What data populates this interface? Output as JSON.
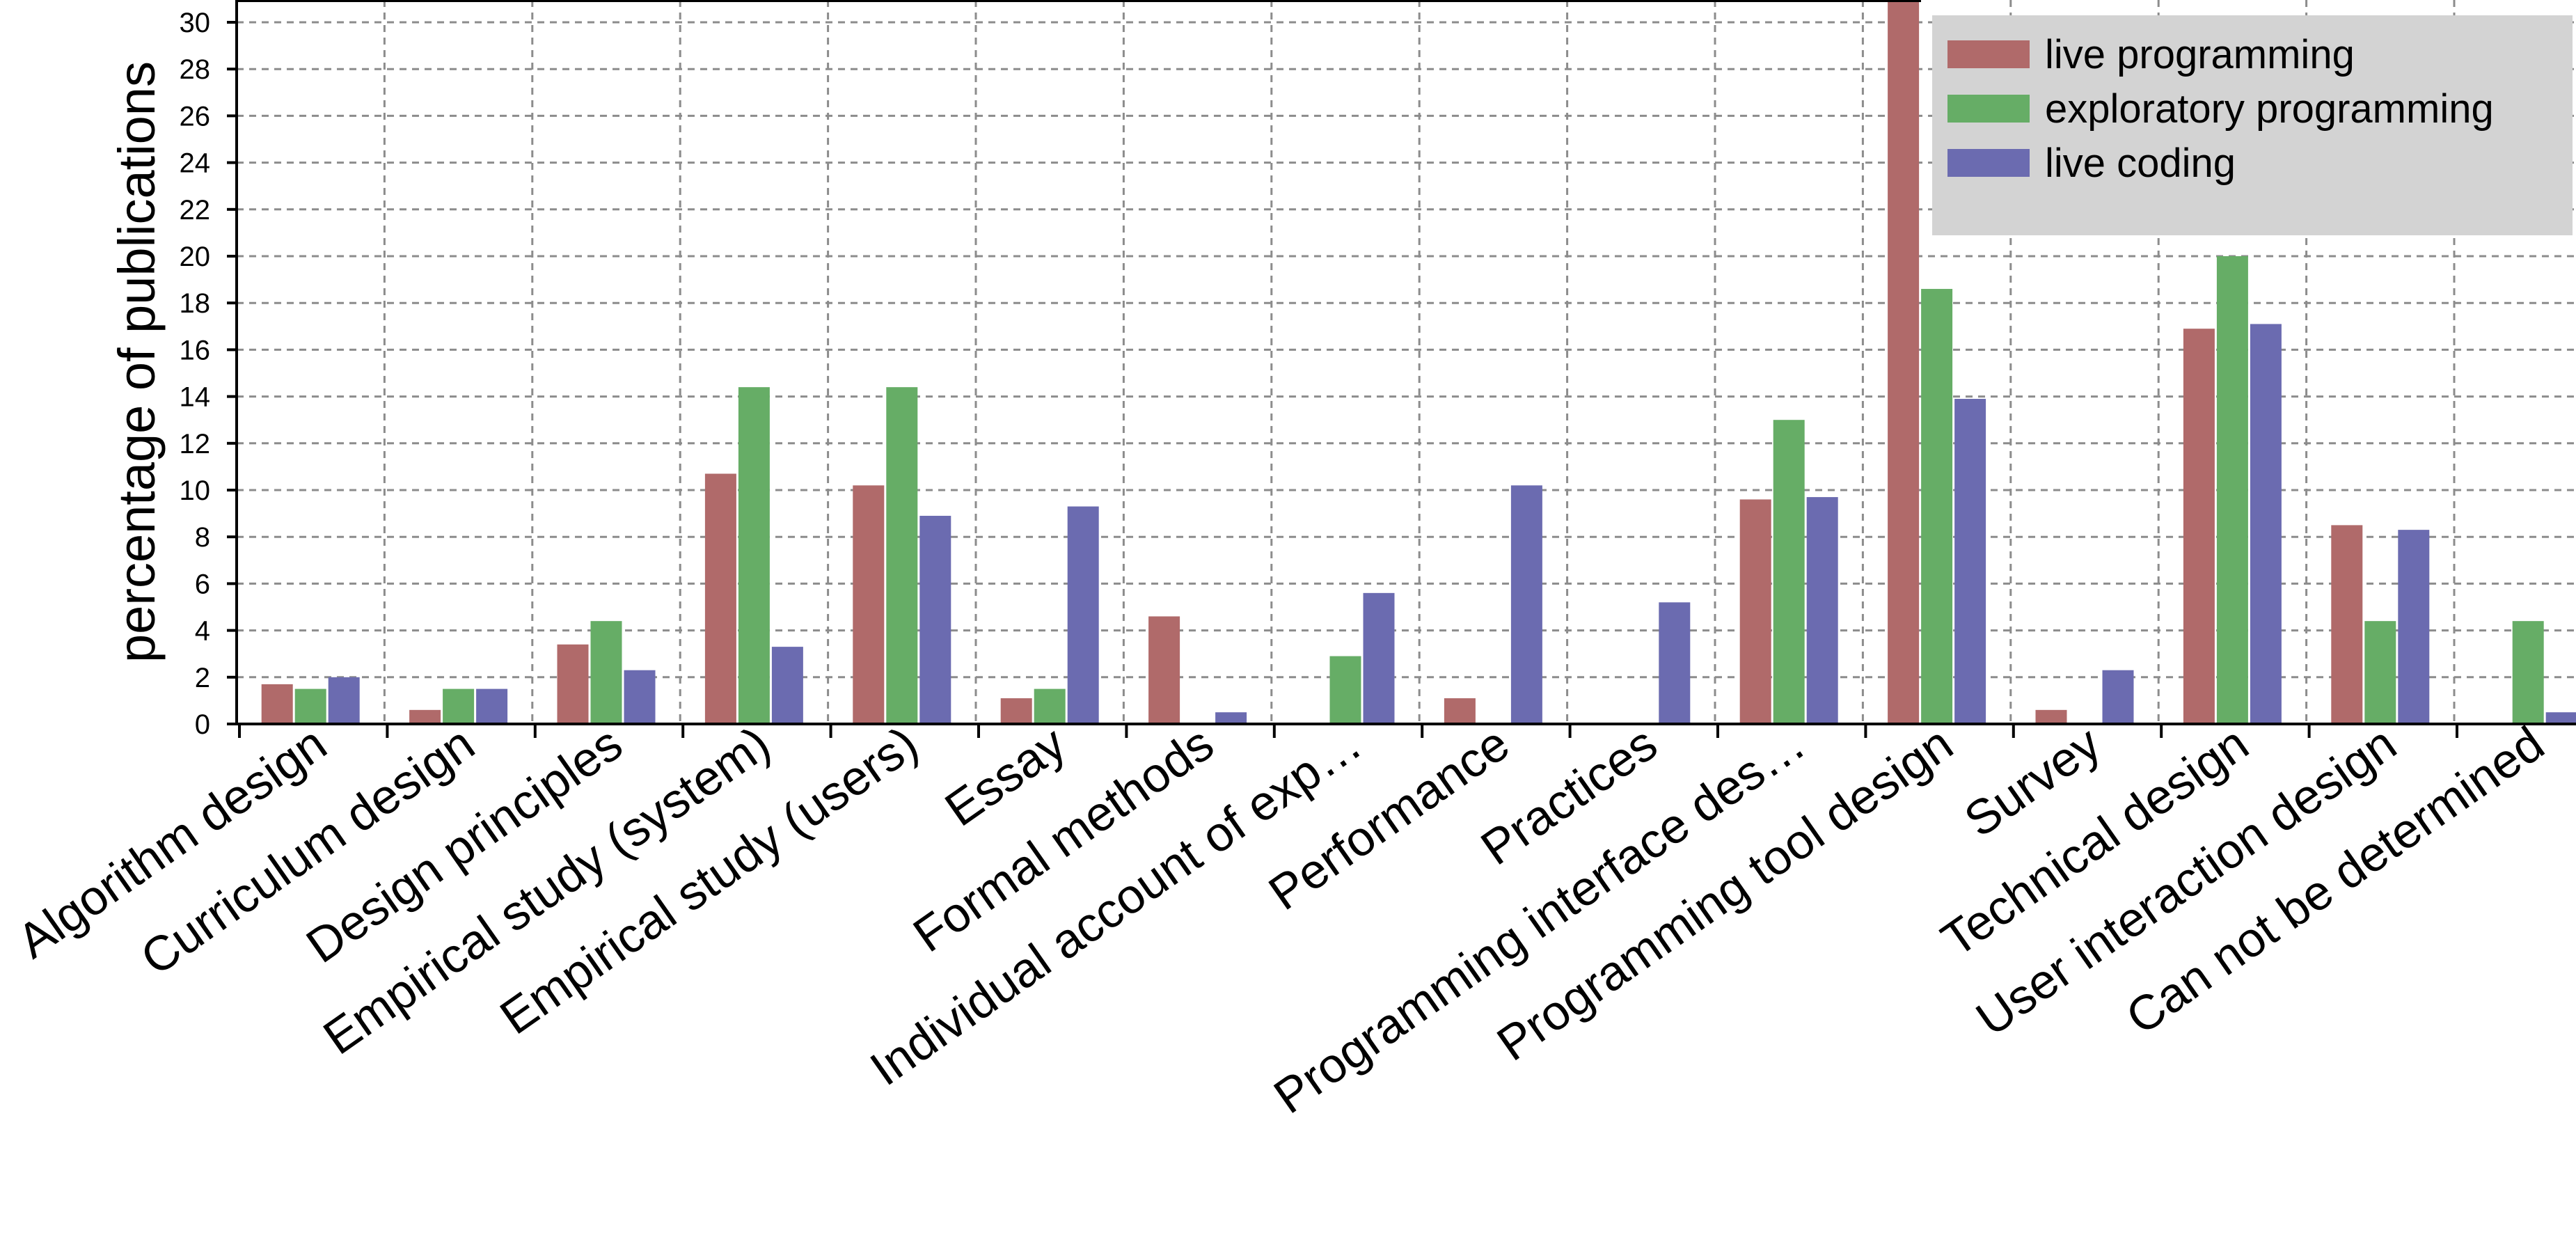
{
  "chart_data": {
    "type": "bar",
    "ylabel": "percentage of publications",
    "ylim": [
      0,
      31
    ],
    "yticks": [
      0,
      2,
      4,
      6,
      8,
      10,
      12,
      14,
      16,
      18,
      20,
      22,
      24,
      26,
      28,
      30
    ],
    "grid": true,
    "legend_position": "top-right",
    "categories": [
      "Algorithm design",
      "Curriculum design",
      "Design principles",
      "Empirical study (system)",
      "Empirical study (users)",
      "Essay",
      "Formal methods",
      "Individual account of exp…",
      "Performance",
      "Practices",
      "Programming interface des…",
      "Programming tool design",
      "Survey",
      "Technical design",
      "User interaction design",
      "Can not be determined"
    ],
    "series": [
      {
        "name": "live programming",
        "color": "#b06a6a",
        "values": [
          1.7,
          0.6,
          3.4,
          10.7,
          10.2,
          1.1,
          4.6,
          0,
          1.1,
          0,
          9.6,
          31.5,
          0.6,
          16.9,
          8.5,
          0
        ]
      },
      {
        "name": "exploratory programming",
        "color": "#66ad66",
        "values": [
          1.5,
          1.5,
          4.4,
          14.4,
          14.4,
          1.5,
          0,
          2.9,
          0,
          0,
          13.0,
          18.6,
          0,
          20.0,
          4.4,
          4.4
        ]
      },
      {
        "name": "live coding",
        "color": "#6b6bb0",
        "values": [
          2.0,
          1.5,
          2.3,
          3.3,
          8.9,
          9.3,
          0.5,
          5.6,
          10.2,
          5.2,
          9.7,
          13.9,
          2.3,
          17.1,
          8.3,
          0.5
        ]
      }
    ]
  }
}
